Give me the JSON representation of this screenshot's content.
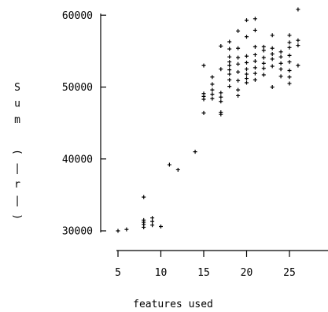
{
  "chart_data": {
    "type": "scatter",
    "title": "",
    "xlabel": "features used",
    "ylabel": "Sum (|r|)",
    "xlim": [
      5,
      30
    ],
    "ylim": [
      30000,
      60000
    ],
    "xticks": [
      5,
      10,
      15,
      20,
      25
    ],
    "yticks": [
      30000,
      40000,
      50000,
      60000
    ],
    "xtick_labels": [
      "5",
      "10",
      "15",
      "20",
      "25"
    ],
    "ytick_labels": [
      "30000",
      "40000",
      "50000",
      "60000"
    ],
    "grid": false,
    "marker": "+",
    "series": [
      {
        "points": [
          [
            5,
            30000
          ],
          [
            6,
            30200
          ],
          [
            8,
            30500
          ],
          [
            8,
            30900
          ],
          [
            8,
            31200
          ],
          [
            8,
            31500
          ],
          [
            8,
            34700
          ],
          [
            9,
            30800
          ],
          [
            9,
            31300
          ],
          [
            9,
            31800
          ],
          [
            10,
            30600
          ],
          [
            11,
            39200
          ],
          [
            12,
            38500
          ],
          [
            14,
            41000
          ],
          [
            15,
            46400
          ],
          [
            15,
            48300
          ],
          [
            15,
            48700
          ],
          [
            15,
            49100
          ],
          [
            15,
            53000
          ],
          [
            16,
            48400
          ],
          [
            16,
            49000
          ],
          [
            16,
            49600
          ],
          [
            16,
            50400
          ],
          [
            16,
            51400
          ],
          [
            17,
            46200
          ],
          [
            17,
            46500
          ],
          [
            17,
            48000
          ],
          [
            17,
            48600
          ],
          [
            17,
            49200
          ],
          [
            17,
            52500
          ],
          [
            17,
            55700
          ],
          [
            18,
            50100
          ],
          [
            18,
            51000
          ],
          [
            18,
            51800
          ],
          [
            18,
            52400
          ],
          [
            18,
            53000
          ],
          [
            18,
            53500
          ],
          [
            18,
            54200
          ],
          [
            18,
            55300
          ],
          [
            18,
            56300
          ],
          [
            19,
            48800
          ],
          [
            19,
            49600
          ],
          [
            19,
            50900
          ],
          [
            19,
            52100
          ],
          [
            19,
            53200
          ],
          [
            19,
            54100
          ],
          [
            19,
            55400
          ],
          [
            19,
            57800
          ],
          [
            20,
            50600
          ],
          [
            20,
            51200
          ],
          [
            20,
            51800
          ],
          [
            20,
            52500
          ],
          [
            20,
            53400
          ],
          [
            20,
            54300
          ],
          [
            20,
            57000
          ],
          [
            20,
            59300
          ],
          [
            21,
            51000
          ],
          [
            21,
            51900
          ],
          [
            21,
            52700
          ],
          [
            21,
            53600
          ],
          [
            21,
            54500
          ],
          [
            21,
            55600
          ],
          [
            21,
            57900
          ],
          [
            21,
            59500
          ],
          [
            22,
            51700
          ],
          [
            22,
            52600
          ],
          [
            22,
            53300
          ],
          [
            22,
            54100
          ],
          [
            22,
            55100
          ],
          [
            22,
            55600
          ],
          [
            23,
            50000
          ],
          [
            23,
            52900
          ],
          [
            23,
            53900
          ],
          [
            23,
            54600
          ],
          [
            23,
            55400
          ],
          [
            23,
            57200
          ],
          [
            24,
            51500
          ],
          [
            24,
            52500
          ],
          [
            24,
            53300
          ],
          [
            24,
            54200
          ],
          [
            24,
            54900
          ],
          [
            25,
            50500
          ],
          [
            25,
            51400
          ],
          [
            25,
            52300
          ],
          [
            25,
            53500
          ],
          [
            25,
            54400
          ],
          [
            25,
            55500
          ],
          [
            25,
            56200
          ],
          [
            25,
            57200
          ],
          [
            26,
            53000
          ],
          [
            26,
            55800
          ],
          [
            26,
            56500
          ],
          [
            26,
            60800
          ]
        ]
      }
    ]
  }
}
